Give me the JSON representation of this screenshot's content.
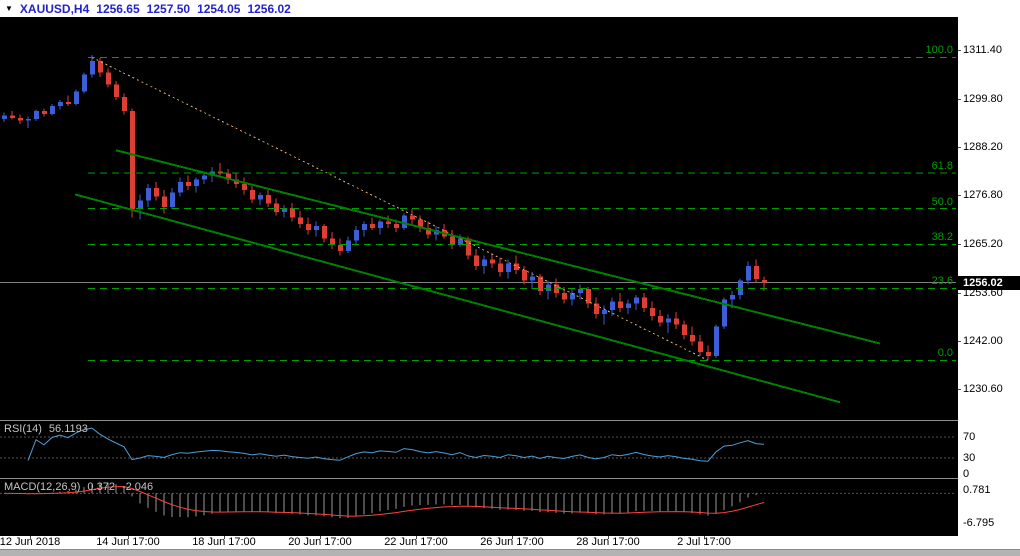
{
  "quote_bar": {
    "dropdown_icon": "▼",
    "symbol_period": "XAUUSD,H4",
    "open": "1256.65",
    "high": "1257.50",
    "low": "1254.05",
    "close": "1256.02"
  },
  "colors": {
    "background": "#000000",
    "bull": "#3c5fd6",
    "bear": "#de3f34",
    "fib": "#00a000",
    "fib_label": "#00a000",
    "fib_diagonal": "#d9a55e",
    "channel": "#008000",
    "current_price_line": "#808080",
    "rsi_line": "#4f9ed8",
    "rsi_level_line": "#555555",
    "macd_signal": "#ff4040",
    "macd_hist": "#9a9a9a",
    "quote_text": "#2323cc"
  },
  "chart_data": {
    "type": "candlestick",
    "symbol": "XAUUSD",
    "timeframe": "H4",
    "current_price": 1256.02,
    "price_axis_labels": [
      1311.4,
      1299.8,
      1288.2,
      1276.8,
      1265.2,
      1253.6,
      1242.0,
      1230.6
    ],
    "time_axis": [
      {
        "label": "12 Jun 2018",
        "i": 3.25
      },
      {
        "label": "14 Jun 17:00",
        "i": 15.5
      },
      {
        "label": "18 Jun 17:00",
        "i": 27.5
      },
      {
        "label": "20 Jun 17:00",
        "i": 39.5
      },
      {
        "label": "22 Jun 17:00",
        "i": 51.5
      },
      {
        "label": "26 Jun 17:00",
        "i": 63.5
      },
      {
        "label": "28 Jun 17:00",
        "i": 75.5
      },
      {
        "label": "2 Jul 17:00",
        "i": 87.5
      }
    ],
    "candles": [
      [
        1295.0,
        1296.5,
        1294.2,
        1295.8
      ],
      [
        1295.8,
        1296.8,
        1294.8,
        1295.2
      ],
      [
        1295.2,
        1296.0,
        1293.8,
        1294.6
      ],
      [
        1294.6,
        1295.5,
        1292.8,
        1295.0
      ],
      [
        1295.0,
        1297.2,
        1294.5,
        1296.8
      ],
      [
        1296.8,
        1297.5,
        1295.5,
        1296.2
      ],
      [
        1296.2,
        1298.5,
        1295.8,
        1298.0
      ],
      [
        1298.0,
        1299.5,
        1297.2,
        1299.0
      ],
      [
        1299.0,
        1300.5,
        1298.0,
        1298.5
      ],
      [
        1298.5,
        1302.0,
        1298.2,
        1301.5
      ],
      [
        1301.5,
        1306.0,
        1301.0,
        1305.5
      ],
      [
        1305.5,
        1310.2,
        1304.8,
        1308.8
      ],
      [
        1308.8,
        1309.5,
        1305.0,
        1306.0
      ],
      [
        1306.0,
        1307.0,
        1302.5,
        1303.2
      ],
      [
        1303.2,
        1304.0,
        1299.5,
        1300.2
      ],
      [
        1300.2,
        1301.0,
        1296.0,
        1296.8
      ],
      [
        1296.8,
        1297.5,
        1271.5,
        1273.5
      ],
      [
        1273.5,
        1277.0,
        1271.0,
        1275.5
      ],
      [
        1275.5,
        1279.5,
        1274.0,
        1278.5
      ],
      [
        1278.5,
        1280.0,
        1275.5,
        1276.5
      ],
      [
        1276.5,
        1278.0,
        1272.5,
        1274.0
      ],
      [
        1274.0,
        1278.5,
        1273.5,
        1277.5
      ],
      [
        1277.5,
        1281.0,
        1276.5,
        1280.0
      ],
      [
        1280.0,
        1281.5,
        1278.0,
        1279.0
      ],
      [
        1279.0,
        1281.0,
        1277.5,
        1280.5
      ],
      [
        1280.5,
        1282.5,
        1279.5,
        1281.5
      ],
      [
        1281.5,
        1283.5,
        1280.0,
        1282.5
      ],
      [
        1282.5,
        1284.5,
        1281.0,
        1282.0
      ],
      [
        1282.0,
        1283.0,
        1279.5,
        1280.5
      ],
      [
        1280.5,
        1282.0,
        1278.5,
        1279.5
      ],
      [
        1279.5,
        1281.0,
        1277.0,
        1278.0
      ],
      [
        1278.0,
        1279.0,
        1275.0,
        1275.8
      ],
      [
        1275.8,
        1277.5,
        1274.5,
        1276.8
      ],
      [
        1276.8,
        1278.0,
        1274.0,
        1274.8
      ],
      [
        1274.8,
        1276.0,
        1272.0,
        1272.8
      ],
      [
        1272.8,
        1274.5,
        1271.5,
        1273.8
      ],
      [
        1273.8,
        1275.0,
        1270.5,
        1271.5
      ],
      [
        1271.5,
        1273.0,
        1269.0,
        1270.0
      ],
      [
        1270.0,
        1271.5,
        1267.5,
        1268.5
      ],
      [
        1268.5,
        1270.5,
        1267.0,
        1269.5
      ],
      [
        1269.5,
        1270.0,
        1265.5,
        1266.5
      ],
      [
        1266.5,
        1268.0,
        1264.0,
        1265.0
      ],
      [
        1265.0,
        1266.5,
        1262.5,
        1263.5
      ],
      [
        1263.5,
        1267.0,
        1263.0,
        1266.0
      ],
      [
        1266.0,
        1269.5,
        1265.0,
        1268.5
      ],
      [
        1268.5,
        1270.5,
        1267.0,
        1270.0
      ],
      [
        1270.0,
        1271.5,
        1268.5,
        1269.0
      ],
      [
        1269.0,
        1271.0,
        1267.5,
        1270.5
      ],
      [
        1270.5,
        1272.0,
        1269.0,
        1270.0
      ],
      [
        1270.0,
        1271.0,
        1268.0,
        1269.0
      ],
      [
        1269.0,
        1272.5,
        1268.5,
        1272.0
      ],
      [
        1272.0,
        1273.5,
        1270.0,
        1271.0
      ],
      [
        1271.0,
        1272.0,
        1268.0,
        1269.0
      ],
      [
        1269.0,
        1270.5,
        1266.5,
        1267.5
      ],
      [
        1267.5,
        1269.5,
        1266.0,
        1268.5
      ],
      [
        1268.5,
        1270.0,
        1266.5,
        1267.0
      ],
      [
        1267.0,
        1268.5,
        1264.0,
        1265.0
      ],
      [
        1265.0,
        1267.5,
        1264.5,
        1266.5
      ],
      [
        1266.5,
        1267.0,
        1261.5,
        1262.5
      ],
      [
        1262.5,
        1264.0,
        1259.0,
        1260.0
      ],
      [
        1260.0,
        1262.5,
        1258.0,
        1261.5
      ],
      [
        1261.5,
        1263.0,
        1259.5,
        1260.5
      ],
      [
        1260.5,
        1262.0,
        1257.5,
        1258.5
      ],
      [
        1258.5,
        1261.5,
        1257.0,
        1260.5
      ],
      [
        1260.5,
        1262.5,
        1258.0,
        1259.0
      ],
      [
        1259.0,
        1260.0,
        1255.5,
        1256.5
      ],
      [
        1256.5,
        1258.5,
        1254.5,
        1257.5
      ],
      [
        1257.5,
        1258.0,
        1253.0,
        1254.0
      ],
      [
        1254.0,
        1256.5,
        1252.0,
        1255.5
      ],
      [
        1255.5,
        1257.0,
        1252.5,
        1253.5
      ],
      [
        1253.5,
        1255.0,
        1251.0,
        1252.0
      ],
      [
        1252.0,
        1254.5,
        1250.5,
        1253.5
      ],
      [
        1253.5,
        1255.5,
        1252.0,
        1254.5
      ],
      [
        1254.5,
        1255.0,
        1250.0,
        1251.0
      ],
      [
        1251.0,
        1252.5,
        1247.5,
        1248.5
      ],
      [
        1248.5,
        1250.5,
        1246.0,
        1249.5
      ],
      [
        1249.5,
        1252.5,
        1248.0,
        1251.5
      ],
      [
        1251.5,
        1253.5,
        1249.0,
        1250.0
      ],
      [
        1250.0,
        1252.0,
        1248.5,
        1251.0
      ],
      [
        1251.0,
        1253.0,
        1249.5,
        1252.5
      ],
      [
        1252.5,
        1253.5,
        1249.0,
        1250.0
      ],
      [
        1250.0,
        1251.5,
        1247.0,
        1248.0
      ],
      [
        1248.0,
        1249.5,
        1245.5,
        1246.5
      ],
      [
        1246.5,
        1248.5,
        1244.0,
        1247.5
      ],
      [
        1247.5,
        1249.0,
        1245.0,
        1246.0
      ],
      [
        1246.0,
        1247.0,
        1242.5,
        1243.5
      ],
      [
        1243.5,
        1245.5,
        1241.0,
        1242.0
      ],
      [
        1242.0,
        1243.5,
        1238.5,
        1239.5
      ],
      [
        1239.5,
        1241.0,
        1237.5,
        1238.5
      ],
      [
        1238.5,
        1246.0,
        1238.0,
        1245.5
      ],
      [
        1245.5,
        1252.5,
        1245.0,
        1252.0
      ],
      [
        1252.0,
        1254.0,
        1250.0,
        1253.0
      ],
      [
        1253.0,
        1257.0,
        1252.0,
        1256.5
      ],
      [
        1256.5,
        1261.0,
        1255.5,
        1260.0
      ],
      [
        1260.0,
        1261.5,
        1256.0,
        1256.8
      ],
      [
        1256.65,
        1257.5,
        1254.05,
        1256.02
      ]
    ],
    "fib": {
      "levels": [
        {
          "label": "100.0",
          "price": 1309.6
        },
        {
          "label": "61.8",
          "price": 1282.1
        },
        {
          "label": "50.0",
          "price": 1273.6
        },
        {
          "label": "38.2",
          "price": 1265.1
        },
        {
          "label": "23.6",
          "price": 1254.6
        },
        {
          "label": "0.0",
          "price": 1237.5
        }
      ],
      "diagonal": {
        "i1": 11,
        "p1": 1309.6,
        "i2": 88,
        "p2": 1237.5
      }
    },
    "channel_lines": [
      {
        "i1": 14,
        "p1": 1287.5,
        "i2": 109.5,
        "p2": 1241.5
      },
      {
        "i1": 8.9,
        "p1": 1277.0,
        "i2": 104.5,
        "p2": 1227.5
      }
    ],
    "rsi": {
      "label": "RSI(14)",
      "value": "56.1193",
      "period": 14,
      "levels": [
        70,
        30
      ],
      "axis_labels": [
        {
          "label": "70",
          "value": 70
        },
        {
          "label": "30",
          "value": 30
        },
        {
          "label": "0",
          "value": 0
        }
      ]
    },
    "macd": {
      "label": "MACD(12,26,9)",
      "value_main": "0.372",
      "value_signal": "-2.046",
      "fast": 12,
      "slow": 26,
      "signal_period": 9,
      "axis_labels": [
        {
          "label": "0.781",
          "value": 0.781
        },
        {
          "label": "-6.795",
          "value": -6.795
        }
      ]
    }
  }
}
